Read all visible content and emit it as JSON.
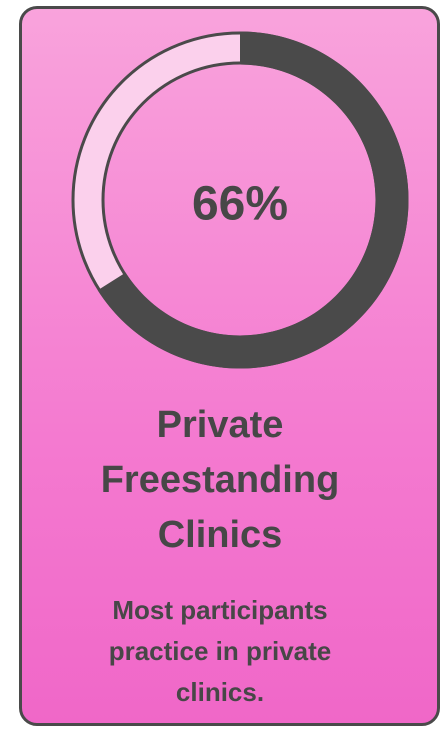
{
  "chart_data": {
    "type": "gauge",
    "values": [
      66
    ],
    "value_labels": [
      "66%"
    ],
    "ylim": [
      0,
      100
    ],
    "color": "#4a4a4a",
    "track_color": "#fbd0ec",
    "title": "Private Freestanding Clinics",
    "subtitle": "Most participants practice in private clinics."
  }
}
